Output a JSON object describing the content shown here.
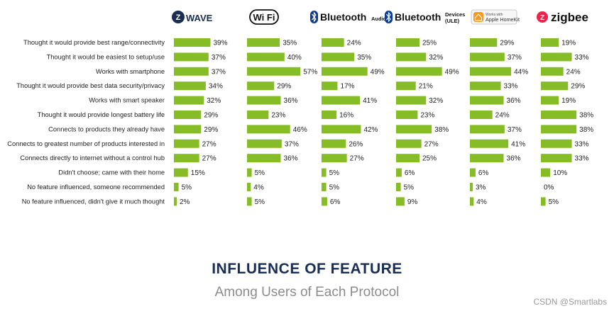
{
  "colors": {
    "bar": "#86bc25",
    "label_text": "#222222",
    "value_text": "#222222",
    "title": "#1a2d52",
    "subtitle": "#8c8c8c"
  },
  "chart_data": {
    "type": "bar",
    "orientation": "horizontal",
    "title": "INFLUENCE OF FEATURE",
    "subtitle": "Among Users of Each Protocol",
    "value_unit": "%",
    "xlim": [
      0,
      60
    ],
    "grid": false,
    "categories": [
      "Thought it would provide best range/connectivity",
      "Thought it would be easiest to setup/use",
      "Works with smartphone",
      "Thought it would provide best data security/privacy",
      "Works with smart speaker",
      "Thought it would provide longest battery life",
      "Connects to products they already have",
      "Connects to greatest number of products interested in",
      "Connects directly to internet without a control hub",
      "Didn't choose; came with their home",
      "No feature influenced, someone recommended",
      "No feature influenced, didn't give it much thought"
    ],
    "series": [
      {
        "name": "Z-Wave",
        "logo_text": "WAVE",
        "logo_badge": "Z",
        "icon": "zwave-logo",
        "values": [
          39,
          37,
          37,
          34,
          32,
          29,
          29,
          27,
          27,
          15,
          5,
          2
        ]
      },
      {
        "name": "Wi-Fi",
        "logo_text": "Wi Fi",
        "icon": "wifi-logo",
        "values": [
          35,
          40,
          57,
          29,
          36,
          23,
          46,
          37,
          36,
          5,
          4,
          5
        ]
      },
      {
        "name": "Bluetooth Audio",
        "logo_text": "Bluetooth",
        "logo_sub": "Audio",
        "icon": "bluetooth-logo",
        "values": [
          24,
          35,
          49,
          17,
          41,
          16,
          42,
          26,
          27,
          5,
          5,
          6
        ]
      },
      {
        "name": "Bluetooth Devices (ULE)",
        "logo_text": "Bluetooth",
        "logo_sub": "Devices",
        "logo_sub2": "(ULE)",
        "icon": "bluetooth-logo",
        "values": [
          25,
          32,
          49,
          21,
          32,
          23,
          38,
          27,
          25,
          6,
          5,
          9
        ]
      },
      {
        "name": "Apple HomeKit",
        "logo_text": "Apple HomeKit",
        "logo_small": "Works with",
        "icon": "apple-homekit-logo",
        "values": [
          29,
          37,
          44,
          33,
          36,
          24,
          37,
          41,
          36,
          6,
          3,
          4
        ]
      },
      {
        "name": "Zigbee",
        "logo_text": "zigbee",
        "logo_badge": "Z",
        "icon": "zigbee-logo",
        "values": [
          19,
          33,
          24,
          29,
          19,
          38,
          38,
          33,
          33,
          10,
          0,
          5
        ]
      }
    ]
  },
  "watermark": "CSDN @Smartlabs"
}
